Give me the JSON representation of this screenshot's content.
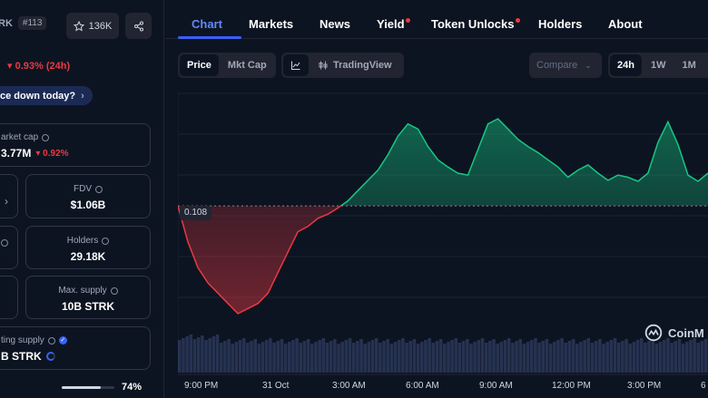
{
  "sidebar": {
    "coin_name": "RK",
    "rank": "#113",
    "watchlist_count": "136K",
    "price_change": "0.93% (24h)",
    "question_pill": "ce down today?",
    "stats": {
      "market_cap_label": "arket cap",
      "market_cap_value": "3.77M",
      "market_cap_change": "0.92%",
      "fdv_label": "FDV",
      "fdv_value": "$1.06B",
      "holders_label": "Holders",
      "holders_value": "29.18K",
      "max_supply_label": "Max. supply",
      "max_supply_value": "10B STRK",
      "circ_supply_label": "ting supply",
      "circ_supply_value": "B STRK"
    },
    "progress_percent": "74%",
    "progress_fraction": 0.74
  },
  "tabs": [
    {
      "label": "Chart",
      "active": true,
      "dot": false
    },
    {
      "label": "Markets",
      "active": false,
      "dot": false
    },
    {
      "label": "News",
      "active": false,
      "dot": false
    },
    {
      "label": "Yield",
      "active": false,
      "dot": true
    },
    {
      "label": "Token Unlocks",
      "active": false,
      "dot": true
    },
    {
      "label": "Holders",
      "active": false,
      "dot": false
    },
    {
      "label": "About",
      "active": false,
      "dot": false
    }
  ],
  "controls": {
    "price_label": "Price",
    "mktcap_label": "Mkt Cap",
    "tradingview_label": "TradingView",
    "compare_label": "Compare",
    "range_24h": "24h",
    "range_1w": "1W",
    "range_1m": "1M"
  },
  "chart_data": {
    "type": "area",
    "baseline": 0.108,
    "baseline_label": "0.108",
    "x_labels": [
      "9:00 PM",
      "31 Oct",
      "3:00 AM",
      "6:00 AM",
      "9:00 AM",
      "12:00 PM",
      "3:00 PM",
      "6"
    ],
    "values": [
      0.108,
      0.1045,
      0.102,
      0.1005,
      0.0995,
      0.0985,
      0.0975,
      0.098,
      0.0985,
      0.0995,
      0.1015,
      0.1035,
      0.1055,
      0.106,
      0.1068,
      0.1072,
      0.1078,
      0.1085,
      0.1095,
      0.1105,
      0.1115,
      0.113,
      0.1148,
      0.116,
      0.1155,
      0.1138,
      0.1125,
      0.1118,
      0.1112,
      0.111,
      0.1135,
      0.116,
      0.1165,
      0.1155,
      0.1145,
      0.1138,
      0.1132,
      0.1125,
      0.1118,
      0.1108,
      0.1115,
      0.112,
      0.1112,
      0.1105,
      0.111,
      0.1108,
      0.1104,
      0.1112,
      0.1142,
      0.1162,
      0.114,
      0.111,
      0.1104,
      0.1112
    ],
    "y_range": [
      0.0975,
      0.1165
    ],
    "up_color": "#16c784",
    "down_color": "#ea3943",
    "watermark": "CoinM"
  }
}
